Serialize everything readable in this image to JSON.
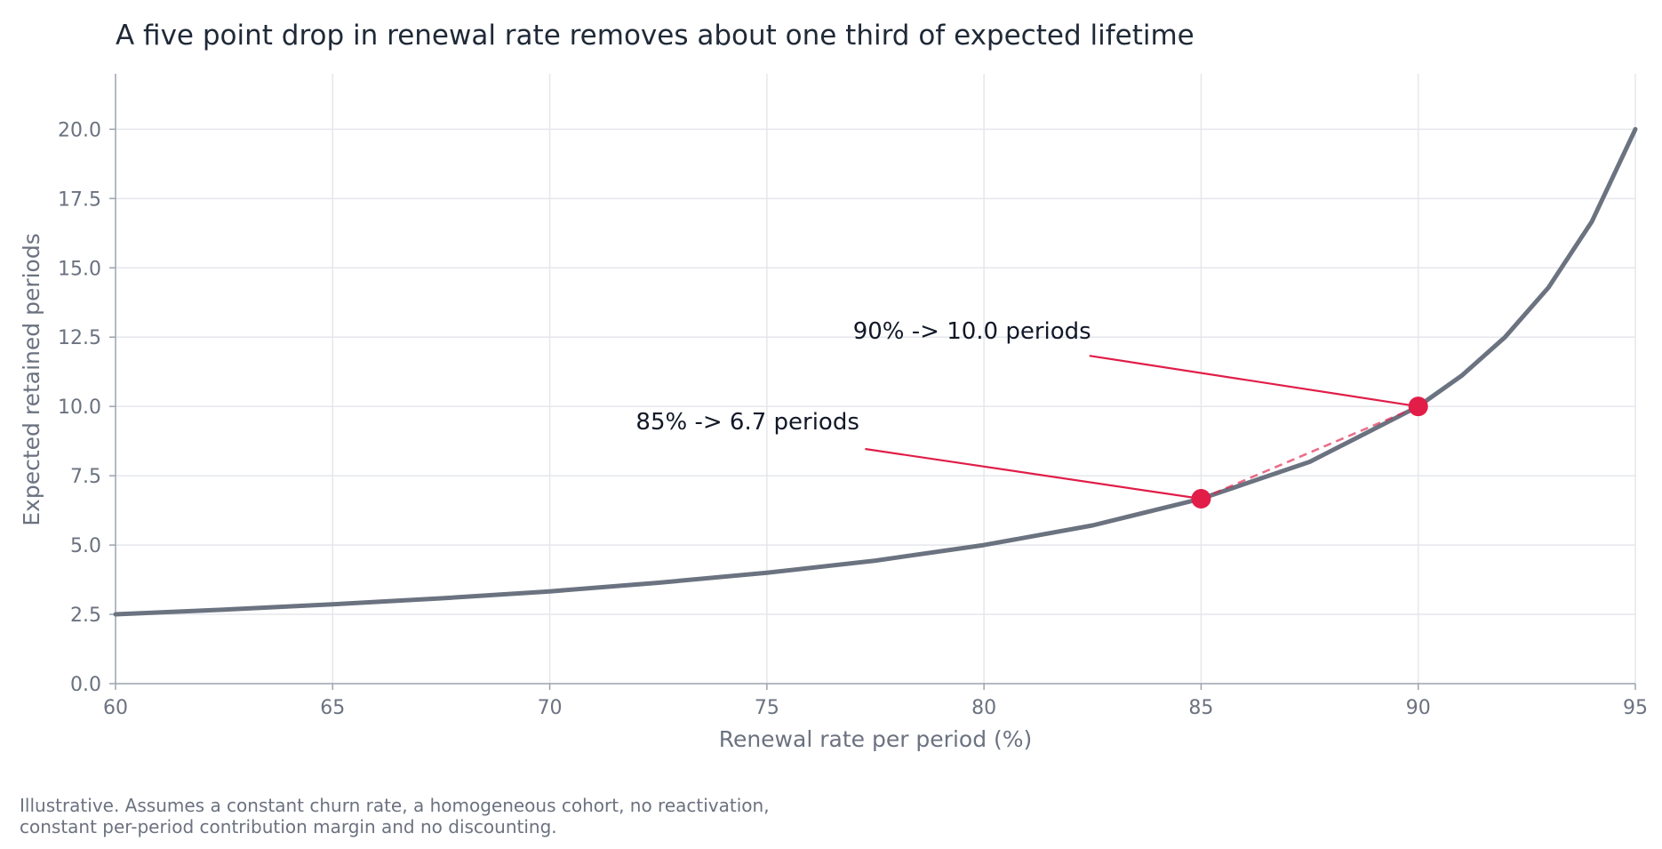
{
  "chart_data": {
    "type": "line",
    "title": "A five point drop in renewal rate removes about one third of expected lifetime",
    "xlabel": "Renewal rate per period (%)",
    "ylabel": "Expected retained periods",
    "xlim": [
      60,
      95
    ],
    "ylim": [
      0,
      22
    ],
    "x_ticks": [
      "60",
      "65",
      "70",
      "75",
      "80",
      "85",
      "90",
      "95"
    ],
    "y_ticks": [
      "0.0",
      "2.5",
      "5.0",
      "7.5",
      "10.0",
      "12.5",
      "15.0",
      "17.5",
      "20.0"
    ],
    "grid": true,
    "series": [
      {
        "x": [
          60,
          62.5,
          65,
          67.5,
          70,
          72.5,
          75,
          77.5,
          80,
          82.5,
          85,
          87.5,
          90,
          91,
          92,
          93,
          94,
          95
        ],
        "y": [
          2.5,
          2.67,
          2.86,
          3.08,
          3.33,
          3.64,
          4.0,
          4.44,
          5.0,
          5.71,
          6.67,
          8.0,
          10.0,
          11.11,
          12.5,
          14.29,
          16.67,
          20.0
        ],
        "color": "#6b7280"
      }
    ],
    "highlights": [
      {
        "x": 85,
        "y": 6.67,
        "label": "85%  ->  6.7 periods"
      },
      {
        "x": 90,
        "y": 10.0,
        "label": "90%  ->  10.0 periods"
      }
    ],
    "accent_color": "#e11d48",
    "footnote": [
      "Illustrative. Assumes a constant churn rate, a homogeneous cohort, no reactivation,",
      "constant per-period contribution margin and no discounting."
    ]
  }
}
